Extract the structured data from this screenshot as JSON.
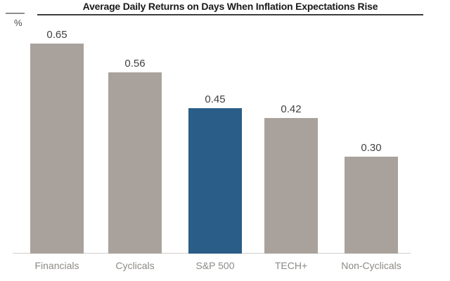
{
  "header": {
    "title": "Average Daily Returns on Days When Inflation Expectations Rise",
    "y_unit_label": "%"
  },
  "colors": {
    "bar_default": "#a9a29c",
    "bar_highlight": "#2a5d87",
    "title_text": "#1a1a1a",
    "title_underline": "#3d3d3d",
    "axis_line": "#d2cfce",
    "value_label": "#3f3f3f",
    "category_label": "#8d8a86"
  },
  "chart_data": {
    "type": "bar",
    "title": "Average Daily Returns on Days When Inflation Expectations Rise",
    "categories": [
      "Financials",
      "Cyclicals",
      "S&P 500",
      "TECH+",
      "Non-Cyclicals"
    ],
    "values": [
      0.65,
      0.56,
      0.45,
      0.42,
      0.3
    ],
    "value_labels": [
      "0.65",
      "0.56",
      "0.45",
      "0.42",
      "0.30"
    ],
    "highlight_index": 2,
    "highlight_category": "S&P 500",
    "xlabel": "",
    "ylabel": "%",
    "ylim": [
      0,
      0.78
    ],
    "grid": false,
    "legend": false,
    "bar_color": "#a9a29c",
    "highlight_color": "#2a5d87"
  }
}
